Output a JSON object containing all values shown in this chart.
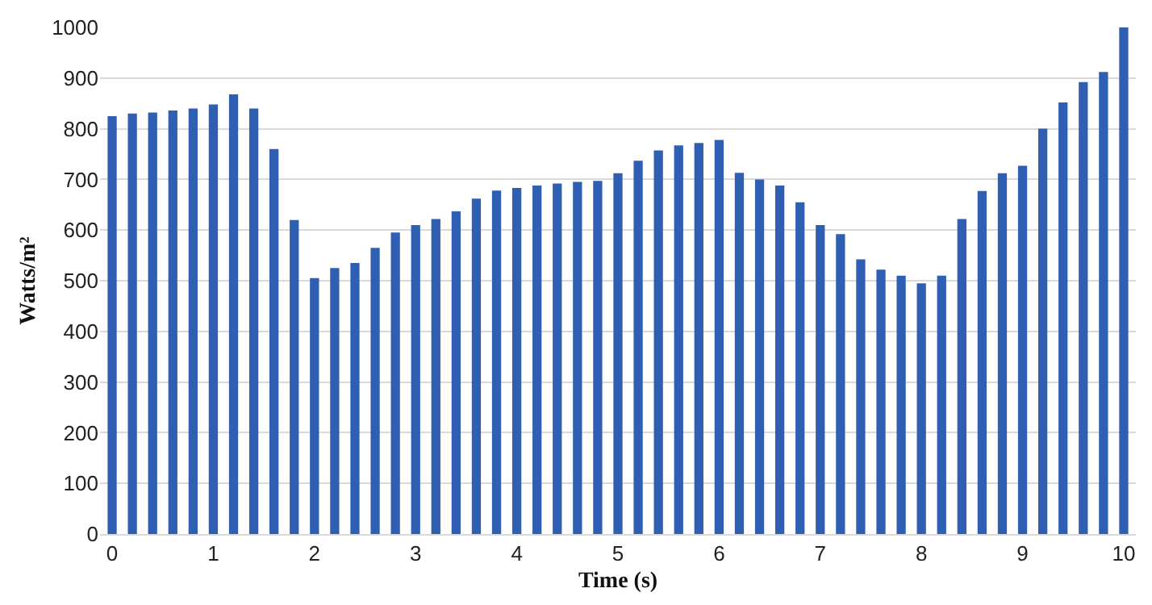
{
  "chart_data": {
    "type": "bar",
    "xlabel": "Time (s)",
    "ylabel": "Watts/m²",
    "x": [
      0,
      0.2,
      0.4,
      0.6,
      0.8,
      1,
      1.2,
      1.4,
      1.6,
      1.8,
      2,
      2.2,
      2.4,
      2.6,
      2.8,
      3,
      3.2,
      3.4,
      3.6,
      3.8,
      4,
      4.2,
      4.4,
      4.6,
      4.8,
      5,
      5.2,
      5.4,
      5.6,
      5.8,
      6,
      6.2,
      6.4,
      6.6,
      6.8,
      7,
      7.2,
      7.4,
      7.6,
      7.8,
      8,
      8.2,
      8.4,
      8.6,
      8.8,
      9,
      9.2,
      9.4,
      9.6,
      9.8,
      10
    ],
    "values": [
      825,
      830,
      832,
      836,
      840,
      848,
      868,
      840,
      760,
      620,
      505,
      525,
      535,
      565,
      595,
      610,
      622,
      637,
      662,
      678,
      683,
      688,
      692,
      695,
      697,
      712,
      737,
      757,
      767,
      772,
      778,
      713,
      700,
      688,
      655,
      610,
      592,
      542,
      522,
      510,
      495,
      510,
      622,
      677,
      712,
      727,
      800,
      852,
      892,
      912,
      1000
    ],
    "color": "#2f5fb3",
    "xlim": [
      -0.12,
      10.12
    ],
    "xticks": [
      0,
      1,
      2,
      3,
      4,
      5,
      6,
      7,
      8,
      9,
      10
    ],
    "ylim": [
      0,
      1000
    ],
    "yticks": [
      0,
      100,
      200,
      300,
      400,
      500,
      600,
      700,
      800,
      900,
      1000
    ],
    "grid": "y"
  }
}
